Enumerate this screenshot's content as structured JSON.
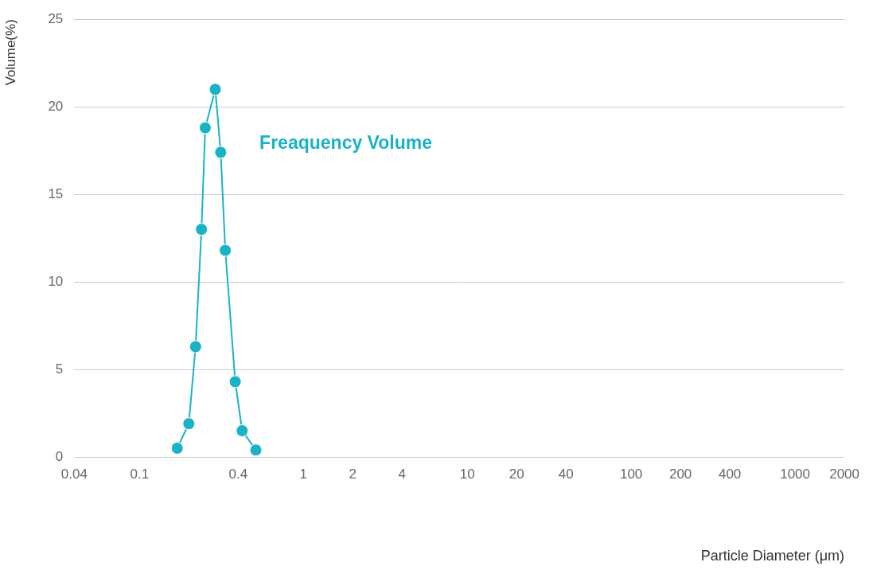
{
  "chart_data": {
    "type": "line",
    "x_label": "Particle Diameter (μm)",
    "y_label": "Volume(%)",
    "x": [
      0.17,
      0.2,
      0.22,
      0.239,
      0.252,
      0.29,
      0.313,
      0.334,
      0.384,
      0.423,
      0.513
    ],
    "values": [
      0.5,
      1.9,
      6.3,
      13.0,
      18.8,
      21.0,
      17.4,
      11.8,
      4.3,
      1.5,
      0.4
    ],
    "color": "#1ab2c7",
    "marker": "circle",
    "log": "x",
    "xlim": [
      0.04,
      2000
    ],
    "xticks": [
      0.04,
      0.1,
      0.4,
      1,
      2,
      4,
      10,
      20,
      40,
      100,
      200,
      400,
      1000,
      2000
    ],
    "ylim": [
      0,
      25
    ],
    "yticks": [
      0,
      5,
      10,
      15,
      20,
      25
    ],
    "grid": true,
    "annotations": [
      {
        "text": "Freaquency Volume",
        "x": 0.54,
        "y": 17.9
      }
    ]
  }
}
